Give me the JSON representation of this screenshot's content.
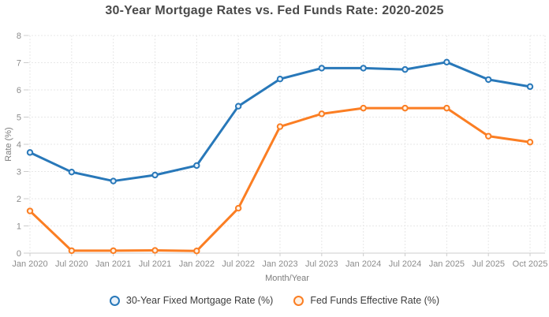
{
  "chart_data": {
    "type": "line",
    "title": "30-Year Mortgage Rates vs. Fed Funds Rate: 2020-2025",
    "xlabel": "Month/Year",
    "ylabel": "Rate (%)",
    "categories": [
      "Jan 2020",
      "Jul 2020",
      "Jan 2021",
      "Jul 2021",
      "Jan 2022",
      "Jul 2022",
      "Jan 2023",
      "Jul 2023",
      "Jan 2024",
      "Jul 2024",
      "Jan 2025",
      "Jul 2025",
      "Oct 2025"
    ],
    "series": [
      {
        "name": "30-Year Fixed Mortgage Rate (%)",
        "color": "#2878b9",
        "marker_fill": "#e8f1fa",
        "values": [
          3.7,
          2.98,
          2.65,
          2.87,
          3.22,
          5.4,
          6.4,
          6.8,
          6.8,
          6.75,
          7.02,
          6.38,
          6.12
        ]
      },
      {
        "name": "Fed Funds Effective Rate (%)",
        "color": "#fb7e23",
        "marker_fill": "#fff1e3",
        "values": [
          1.55,
          0.09,
          0.09,
          0.1,
          0.08,
          1.65,
          4.65,
          5.12,
          5.33,
          5.33,
          5.33,
          4.3,
          4.08
        ]
      }
    ],
    "ylim": [
      0,
      8
    ],
    "yticks": [
      0,
      1,
      2,
      3,
      4,
      5,
      6,
      7,
      8
    ],
    "grid": true,
    "legend_position": "bottom"
  },
  "colors": {
    "title_text": "#4a4a4a",
    "tick_text": "#8c8c8c",
    "axis_title_text": "#7d7d7d",
    "legend_text": "#3c3c3c",
    "gridline": "#e7e7e7",
    "axis_line": "#cccccc",
    "background": "#ffffff"
  }
}
